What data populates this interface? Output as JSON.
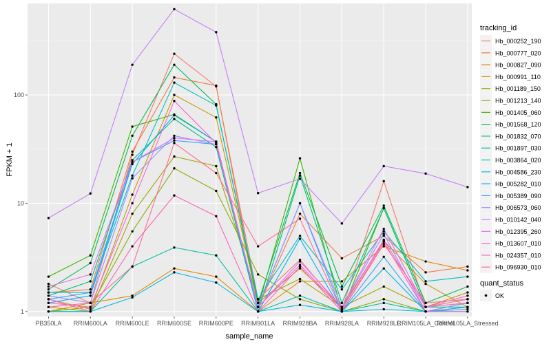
{
  "chart_data": {
    "type": "line",
    "xlabel": "sample_name",
    "ylabel": "FPKM + 1",
    "y_scale": "log10",
    "ylim": [
      0.9,
      700
    ],
    "y_ticks": [
      1,
      10,
      100
    ],
    "y_tick_labels": [
      "1",
      "10",
      "100"
    ],
    "grid": true,
    "legend_position": "right",
    "categories": [
      "PB350LA",
      "RRIM600LA",
      "RRIM600LE",
      "RRIM600SE",
      "RRIM600PE",
      "RRIM901LA",
      "RRIM928BA",
      "RRIM928LA",
      "RRIM928LE",
      "RRIM105LA_Control",
      "RRIM105LA_Stressed"
    ],
    "legend_title": "tracking_id",
    "series": [
      {
        "name": "Hb_000252_190",
        "color": "#F8766D",
        "values": [
          1.8,
          1.2,
          28,
          240,
          120,
          1.3,
          3,
          1.05,
          16,
          1.1,
          1.3
        ]
      },
      {
        "name": "Hb_000777_020",
        "color": "#F2793E",
        "values": [
          1.5,
          1.6,
          30,
          145,
          122,
          1.1,
          8,
          3.1,
          5,
          2.3,
          2.6
        ]
      },
      {
        "name": "Hb_000827_090",
        "color": "#E58700",
        "values": [
          1.0,
          1.2,
          1.4,
          2.5,
          2.1,
          1.0,
          1.9,
          1.9,
          4,
          2.9,
          2.4
        ]
      },
      {
        "name": "Hb_000991_110",
        "color": "#C99800",
        "values": [
          1.3,
          1.05,
          12,
          100,
          62,
          1.2,
          2.5,
          1.1,
          4.5,
          1.8,
          1.1
        ]
      },
      {
        "name": "Hb_001189_150",
        "color": "#A3A500",
        "values": [
          1.1,
          1.0,
          8,
          27,
          22,
          1.3,
          2,
          1.1,
          1.7,
          1.1,
          1.5
        ]
      },
      {
        "name": "Hb_001213_140",
        "color": "#8AAB00",
        "values": [
          1.0,
          1.1,
          5.5,
          21,
          13,
          2.2,
          1.3,
          1.0,
          1.3,
          1.0,
          1.2
        ]
      },
      {
        "name": "Hb_001405_060",
        "color": "#39B600",
        "values": [
          2.1,
          3.3,
          51,
          66,
          37,
          1.1,
          26,
          1.0,
          9,
          1.1,
          1.2
        ]
      },
      {
        "name": "Hb_001568_120",
        "color": "#00BB4E",
        "values": [
          1.6,
          2.8,
          42,
          190,
          82,
          1.2,
          19,
          1.7,
          9.5,
          1.2,
          1.7
        ]
      },
      {
        "name": "Hb_001832_070",
        "color": "#00BF7D",
        "values": [
          1.4,
          1.9,
          25,
          60,
          33,
          1.0,
          18,
          1.2,
          9,
          1.1,
          1.1
        ]
      },
      {
        "name": "Hb_001897_030",
        "color": "#00C1A3",
        "values": [
          1.0,
          1.0,
          2.6,
          3.9,
          3.3,
          1.0,
          1.4,
          1.0,
          1.2,
          1.0,
          1.1
        ]
      },
      {
        "name": "Hb_003864_020",
        "color": "#00BFC4",
        "values": [
          1.5,
          1.5,
          18,
          130,
          80,
          1.3,
          5,
          1.6,
          5.5,
          1.9,
          2.1
        ]
      },
      {
        "name": "Hb_004586_230",
        "color": "#00BAE0",
        "values": [
          1.0,
          1.0,
          1.35,
          2.3,
          1.85,
          1.0,
          1.15,
          1.0,
          1.05,
          1.0,
          1.05
        ]
      },
      {
        "name": "Hb_005282_010",
        "color": "#00B0F6",
        "values": [
          1.2,
          1.4,
          23,
          65,
          37,
          1.0,
          4.7,
          1.0,
          2.5,
          1.0,
          1.0
        ]
      },
      {
        "name": "Hb_005389_090",
        "color": "#35A2FF",
        "values": [
          1.3,
          1.5,
          24,
          38,
          35,
          1.1,
          10,
          1.0,
          3.2,
          1.0,
          1.1
        ]
      },
      {
        "name": "Hb_006573_060",
        "color": "#9590FF",
        "values": [
          1.4,
          1.2,
          17,
          42,
          35,
          1.1,
          10,
          1.1,
          5.2,
          1.0,
          1.2
        ]
      },
      {
        "name": "Hb_010142_040",
        "color": "#C77CFF",
        "values": [
          7.3,
          12.3,
          190,
          620,
          380,
          12.4,
          16.8,
          6.5,
          22,
          18.8,
          14.1
        ]
      },
      {
        "name": "Hb_012395_260",
        "color": "#E76BF3",
        "values": [
          1.7,
          2.2,
          24,
          40,
          37,
          1.1,
          2.9,
          1.1,
          5.8,
          1.1,
          1.2
        ]
      },
      {
        "name": "Hb_013607_010",
        "color": "#FA62DB",
        "values": [
          1.2,
          1.1,
          10,
          88,
          36,
          1.1,
          2.7,
          1.05,
          4.6,
          1.1,
          1.4
        ]
      },
      {
        "name": "Hb_024357_010",
        "color": "#FF62BC",
        "values": [
          1.3,
          1.0,
          4,
          11.8,
          7.6,
          1.0,
          2.6,
          1.0,
          4.4,
          1.0,
          1.0
        ]
      },
      {
        "name": "Hb_096930_010",
        "color": "#FF6C91",
        "values": [
          1.1,
          1.2,
          2.6,
          36,
          19,
          4,
          7.2,
          1.0,
          4.2,
          1.2,
          1.3
        ]
      }
    ],
    "legend2_title": "quant_status",
    "legend2_items": [
      {
        "label": "OK",
        "color": "#000000"
      }
    ]
  }
}
